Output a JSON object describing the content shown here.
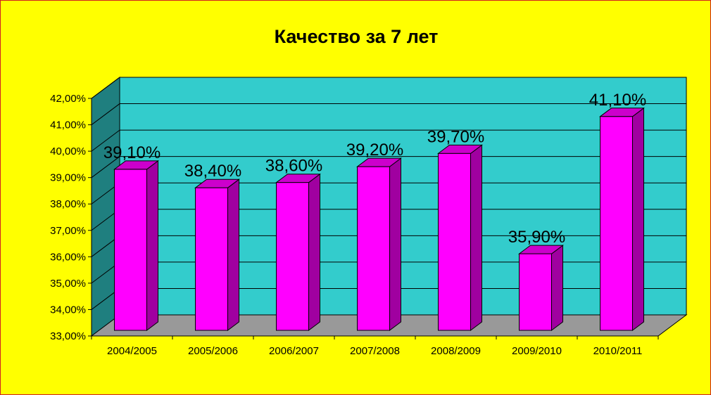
{
  "chart_data": {
    "type": "bar",
    "title": "Качество  за 7 лет",
    "xlabel": "",
    "ylabel": "",
    "categories": [
      "2004/2005",
      "2005/2006",
      "2006/2007",
      "2007/2008",
      "2008/2009",
      "2009/2010",
      "2010/2011"
    ],
    "values": [
      39.1,
      38.4,
      38.6,
      39.2,
      39.7,
      35.9,
      41.1
    ],
    "data_labels": [
      "39,10%",
      "38,40%",
      "38,60%",
      "39,20%",
      "39,70%",
      "35,90%",
      "41,10%"
    ],
    "ylim": [
      33,
      42
    ],
    "y_ticks": [
      "33,00%",
      "34,00%",
      "35,00%",
      "36,00%",
      "37,00%",
      "38,00%",
      "39,00%",
      "40,00%",
      "41,00%",
      "42,00%"
    ],
    "grid": true,
    "three_d": true,
    "colors": {
      "background": "#ffff00",
      "back_wall": "#33cccc",
      "side_wall": "#1f7f7f",
      "floor": "#999999",
      "bar_front": "#ff00ff",
      "bar_side": "#a000a0",
      "bar_top": "#cc00cc"
    }
  }
}
